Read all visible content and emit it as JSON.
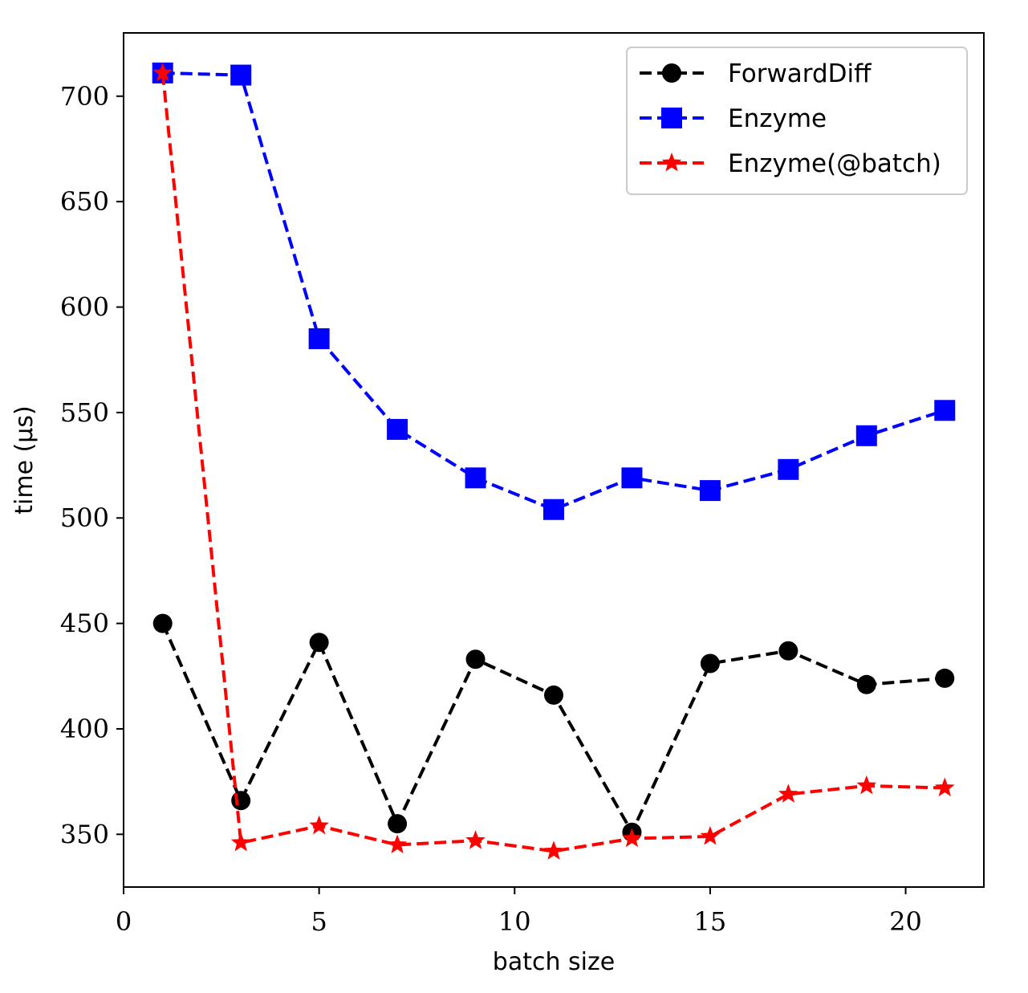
{
  "chart_data": {
    "type": "line",
    "title": "",
    "xlabel": "batch size",
    "ylabel": "time (μs)",
    "xlim": [
      0,
      22
    ],
    "ylim": [
      325,
      730
    ],
    "xticks": [
      0,
      5,
      10,
      15,
      20
    ],
    "yticks": [
      350,
      400,
      450,
      500,
      550,
      600,
      650,
      700
    ],
    "grid": false,
    "legend_position": "top-right",
    "x": [
      1,
      3,
      5,
      7,
      9,
      11,
      13,
      15,
      17,
      19,
      21
    ],
    "series": [
      {
        "name": "ForwardDiff",
        "color": "#000000",
        "marker": "circle",
        "linestyle": "dashed",
        "values": [
          450,
          366,
          441,
          355,
          433,
          416,
          351,
          431,
          437,
          421,
          424
        ]
      },
      {
        "name": "Enzyme",
        "color": "#0000ff",
        "marker": "square",
        "linestyle": "dashed",
        "values": [
          711,
          710,
          585,
          542,
          519,
          504,
          519,
          513,
          523,
          539,
          551
        ]
      },
      {
        "name": "Enzyme(@batch)",
        "color": "#ff0000",
        "marker": "star",
        "linestyle": "dashed",
        "values": [
          711,
          346,
          354,
          345,
          347,
          342,
          348,
          349,
          369,
          373,
          372
        ]
      }
    ]
  }
}
